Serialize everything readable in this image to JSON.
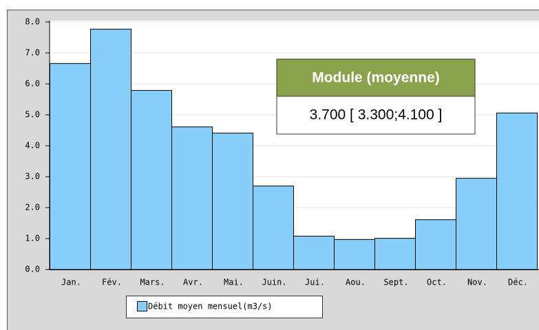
{
  "chart_data": {
    "type": "bar",
    "categories": [
      "Jan.",
      "Fév.",
      "Mars.",
      "Avr.",
      "Mai.",
      "Juin.",
      "Jui.",
      "Aou.",
      "Sept.",
      "Oct.",
      "Nov.",
      "Déc."
    ],
    "series": [
      {
        "name": "Débit moyen mensuel(m3/s)",
        "color": "#87cefa",
        "values": [
          6.67,
          7.78,
          5.8,
          4.62,
          4.42,
          2.71,
          1.09,
          0.98,
          1.02,
          1.62,
          2.96,
          5.07
        ]
      }
    ],
    "ylim": [
      0,
      8
    ],
    "yticks": [
      {
        "value": 0,
        "label": "0.0"
      },
      {
        "value": 1,
        "label": "1.0"
      },
      {
        "value": 2,
        "label": "2.0"
      },
      {
        "value": 3,
        "label": "3.0"
      },
      {
        "value": 4,
        "label": "4.0"
      },
      {
        "value": 5,
        "label": "5.0"
      },
      {
        "value": 6,
        "label": "6.0"
      },
      {
        "value": 7,
        "label": "7.0"
      },
      {
        "value": 8,
        "label": "8.0"
      }
    ],
    "grid": true,
    "annotation": {
      "title": "Module (moyenne)",
      "text": "3.700 [ 3.300;4.100 ]"
    }
  }
}
